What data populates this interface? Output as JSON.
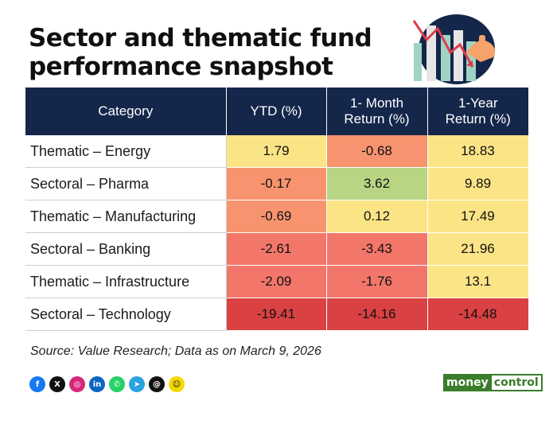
{
  "title": {
    "line1": "Sector and thematic fund",
    "line2": "performance snapshot"
  },
  "table": {
    "headers": [
      "Category",
      "YTD (%)",
      "1- Month Return (%)",
      "1-Year Return (%)"
    ],
    "header_month_line1": "1- Month",
    "header_month_line2": "Return (%)",
    "header_year_line1": "1-Year",
    "header_year_line2": "Return (%)",
    "rows": [
      {
        "category": "Thematic – Energy",
        "ytd": "1.79",
        "month": "-0.68",
        "year": "18.83",
        "colors": [
          "#fbe486",
          "#f7946f",
          "#fbe486"
        ]
      },
      {
        "category": "Sectoral – Pharma",
        "ytd": "-0.17",
        "month": "3.62",
        "year": "9.89",
        "colors": [
          "#f7946f",
          "#b8d584",
          "#fbe486"
        ]
      },
      {
        "category": "Thematic – Manufacturing",
        "ytd": "-0.69",
        "month": "0.12",
        "year": "17.49",
        "colors": [
          "#f7946f",
          "#fbe486",
          "#fbe486"
        ]
      },
      {
        "category": "Sectoral – Banking",
        "ytd": "-2.61",
        "month": "-3.43",
        "year": "21.96",
        "colors": [
          "#f2776a",
          "#f2776a",
          "#fbe486"
        ]
      },
      {
        "category": "Thematic – Infrastructure",
        "ytd": "-2.09",
        "month": "-1.76",
        "year": "13.1",
        "colors": [
          "#f2776a",
          "#f2776a",
          "#fbe486"
        ]
      },
      {
        "category": "Sectoral – Technology",
        "ytd": "-19.41",
        "month": "-14.16",
        "year": "-14.48",
        "colors": [
          "#d94142",
          "#d94142",
          "#d94142"
        ]
      }
    ]
  },
  "source": "Source: Value Research; Data as on March 9, 2026",
  "social_icons": [
    {
      "name": "facebook-icon",
      "glyph": "f",
      "color": "#1877f2"
    },
    {
      "name": "x-icon",
      "glyph": "X",
      "color": "#111111"
    },
    {
      "name": "instagram-icon",
      "glyph": "◎",
      "color": "#d6287a"
    },
    {
      "name": "linkedin-icon",
      "glyph": "in",
      "color": "#0a66c2"
    },
    {
      "name": "whatsapp-icon",
      "glyph": "✆",
      "color": "#25d366"
    },
    {
      "name": "telegram-icon",
      "glyph": "➤",
      "color": "#2aa3e0"
    },
    {
      "name": "threads-icon",
      "glyph": "@",
      "color": "#111111"
    },
    {
      "name": "snapchat-icon",
      "glyph": "☺",
      "color": "#f5d800"
    }
  ],
  "brand": {
    "part1": "money",
    "part2": "control"
  },
  "colors": {
    "header_bg": "#14264a",
    "brand_green": "#3a7d2a"
  }
}
